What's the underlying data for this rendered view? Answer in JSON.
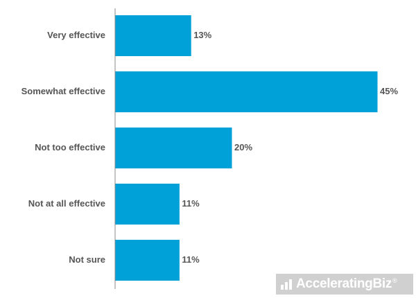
{
  "chart_data": {
    "type": "bar",
    "orientation": "horizontal",
    "categories": [
      "Very effective",
      "Somewhat effective",
      "Not too effective",
      "Not at all effective",
      "Not sure"
    ],
    "values": [
      13,
      45,
      20,
      11,
      11
    ],
    "value_labels": [
      "13%",
      "45%",
      "20%",
      "11%",
      "11%"
    ],
    "xlim": [
      0,
      50
    ],
    "grid": false,
    "bar_color": "#00a0d8",
    "title": "",
    "xlabel": "",
    "ylabel": ""
  },
  "watermark": {
    "name": "AcceleratingBiz",
    "mark": "®",
    "icon": "bar-chart-logo-icon"
  }
}
